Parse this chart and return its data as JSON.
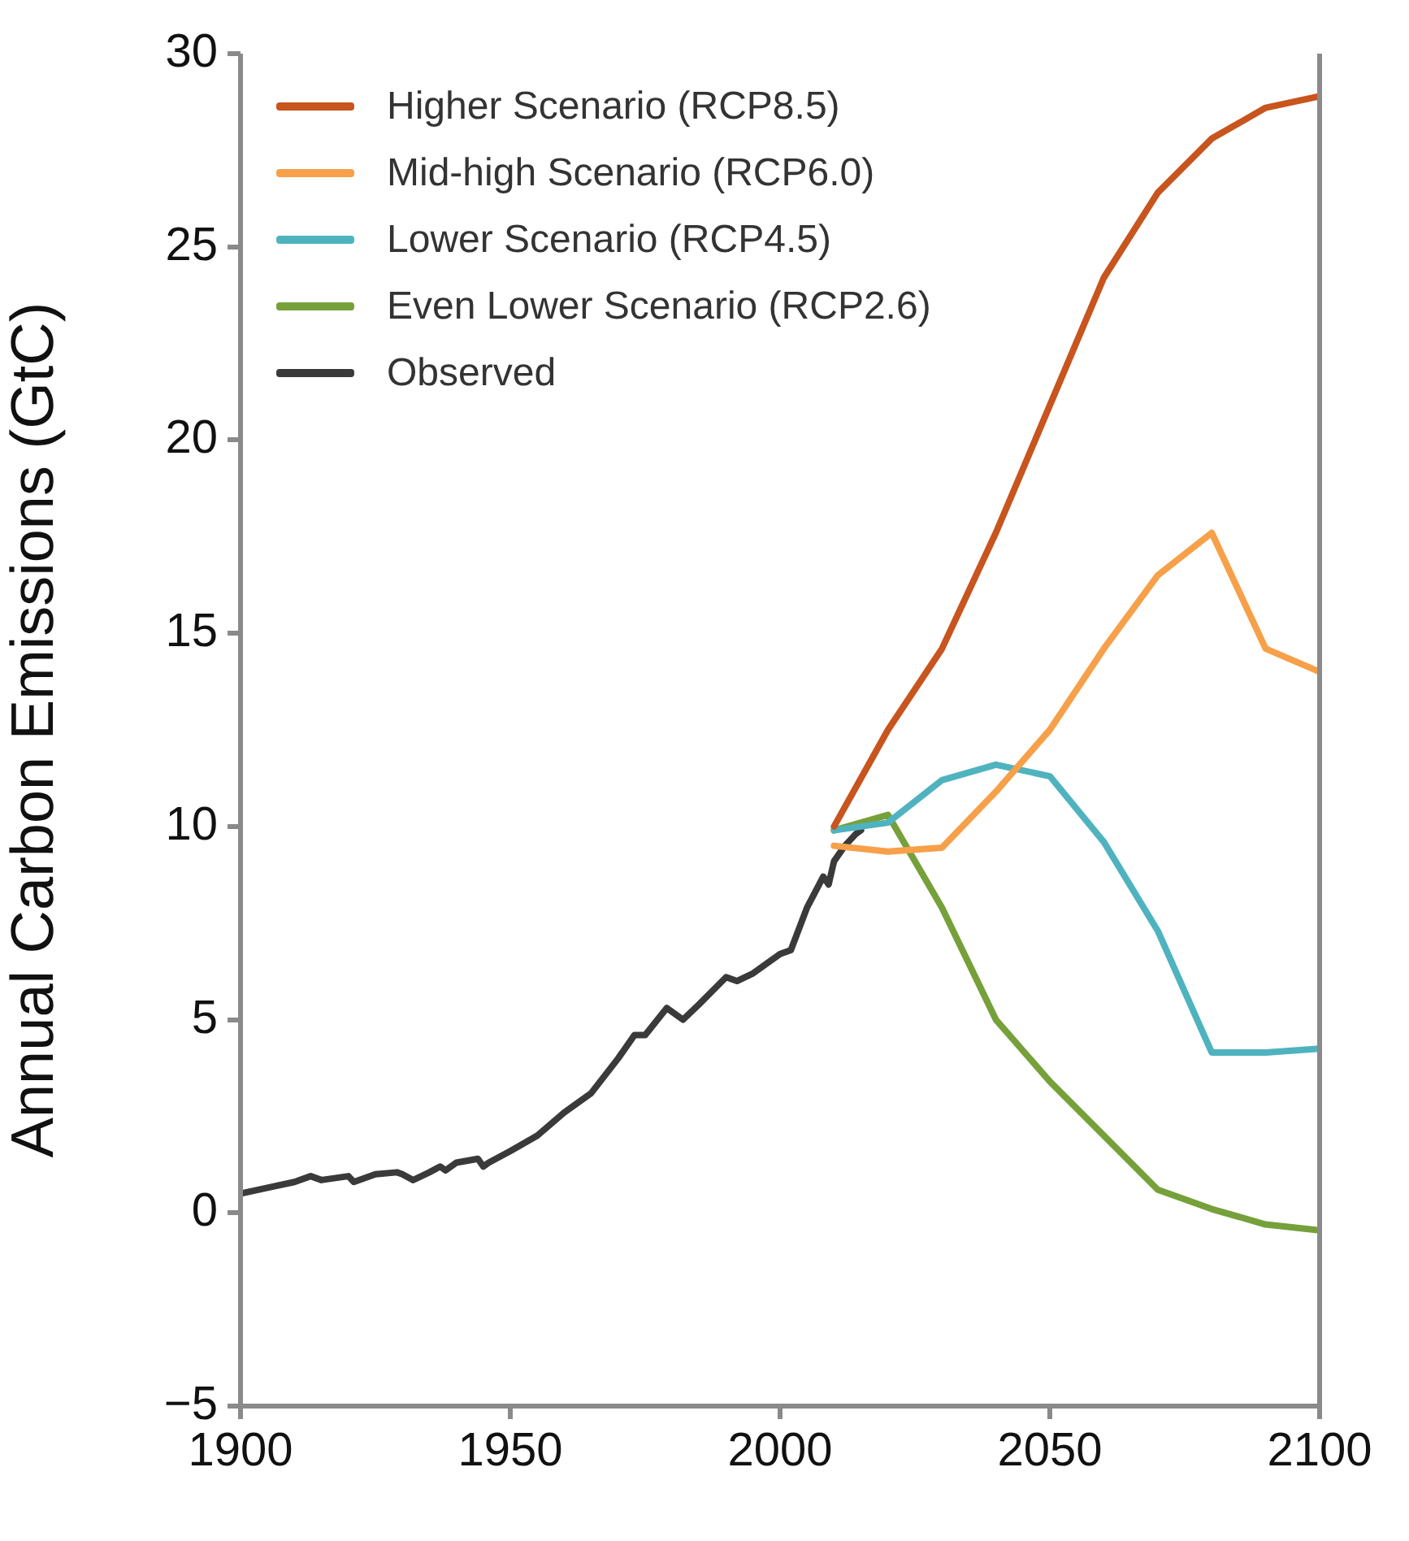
{
  "chart_data": {
    "type": "line",
    "ylabel": "Annual Carbon Emissions (GtC)",
    "xlim": [
      1900,
      2100
    ],
    "xticks": [
      1900,
      1950,
      2000,
      2050,
      2100
    ],
    "ylim": [
      -5,
      30
    ],
    "yticks": [
      -5,
      0,
      5,
      10,
      15,
      20,
      25,
      30
    ],
    "grid": false,
    "legend": "top left",
    "marker": "none",
    "line_style": "solid",
    "series": [
      {
        "name": "Higher Scenario (RCP8.5)",
        "color": "#c8541e",
        "x": [
          2010,
          2020,
          2030,
          2040,
          2050,
          2060,
          2070,
          2080,
          2090,
          2100
        ],
        "values": [
          10.0,
          12.5,
          14.6,
          17.6,
          20.9,
          24.2,
          26.4,
          27.8,
          28.6,
          28.9
        ]
      },
      {
        "name": "Mid-high Scenario (RCP6.0)",
        "color": "#f7a04a",
        "x": [
          2010,
          2020,
          2030,
          2040,
          2050,
          2060,
          2070,
          2080,
          2090,
          2100
        ],
        "values": [
          9.5,
          9.35,
          9.45,
          10.9,
          12.5,
          14.6,
          16.5,
          17.6,
          14.6,
          14.0
        ]
      },
      {
        "name": "Lower Scenario (RCP4.5)",
        "color": "#4fb3bf",
        "x": [
          2010,
          2020,
          2030,
          2040,
          2050,
          2060,
          2070,
          2080,
          2090,
          2100
        ],
        "values": [
          9.9,
          10.1,
          11.2,
          11.6,
          11.3,
          9.6,
          7.3,
          4.15,
          4.15,
          4.25
        ]
      },
      {
        "name": "Even Lower Scenario (RCP2.6)",
        "color": "#76a03a",
        "x": [
          2010,
          2020,
          2030,
          2040,
          2050,
          2060,
          2070,
          2080,
          2090,
          2100
        ],
        "values": [
          9.9,
          10.3,
          7.9,
          5.0,
          3.4,
          2.0,
          0.6,
          0.1,
          -0.3,
          -0.45
        ]
      },
      {
        "name": "Observed",
        "color": "#3a3a3a",
        "x": [
          1900,
          1905,
          1910,
          1913,
          1915,
          1920,
          1921,
          1925,
          1929,
          1930,
          1932,
          1935,
          1937,
          1938,
          1940,
          1944,
          1945,
          1946,
          1950,
          1955,
          1960,
          1965,
          1970,
          1973,
          1975,
          1979,
          1980,
          1982,
          1985,
          1990,
          1992,
          1995,
          2000,
          2002,
          2005,
          2008,
          2009,
          2010,
          2012,
          2014,
          2015
        ],
        "values": [
          0.5,
          0.65,
          0.8,
          0.95,
          0.85,
          0.95,
          0.8,
          1.0,
          1.05,
          1.0,
          0.85,
          1.05,
          1.2,
          1.1,
          1.3,
          1.4,
          1.2,
          1.3,
          1.6,
          2.0,
          2.6,
          3.1,
          4.0,
          4.6,
          4.6,
          5.3,
          5.2,
          5.0,
          5.4,
          6.1,
          6.0,
          6.2,
          6.7,
          6.8,
          7.9,
          8.7,
          8.5,
          9.1,
          9.5,
          9.8,
          9.9
        ]
      }
    ]
  }
}
